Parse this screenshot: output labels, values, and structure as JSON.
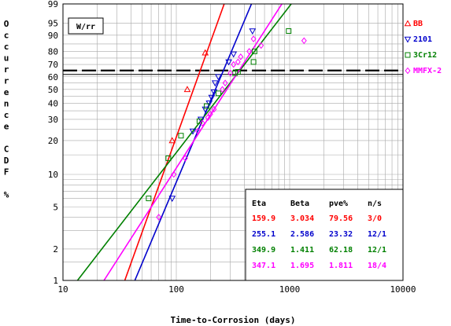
{
  "chart_data": {
    "type": "scatter",
    "xlabel": "Time-to-Corrosion (days)",
    "ylabel": "Occurrence CDF %",
    "x_scale": "log",
    "y_scale": "weibull",
    "xlim": [
      10,
      10000
    ],
    "ylim": [
      1,
      99
    ],
    "x_ticks": [
      {
        "value": 10,
        "label": "10"
      },
      {
        "value": 100,
        "label": "100"
      },
      {
        "value": 1000,
        "label": "1000"
      },
      {
        "value": 10000,
        "label": "10000"
      }
    ],
    "y_ticks": [
      {
        "value": 1,
        "label": "1"
      },
      {
        "value": 2,
        "label": "2"
      },
      {
        "value": 5,
        "label": "5"
      },
      {
        "value": 10,
        "label": "10"
      },
      {
        "value": 20,
        "label": "20"
      },
      {
        "value": 30,
        "label": "30"
      },
      {
        "value": 40,
        "label": "40"
      },
      {
        "value": 50,
        "label": "50"
      },
      {
        "value": 60,
        "label": "60"
      },
      {
        "value": 70,
        "label": "70"
      },
      {
        "value": 80,
        "label": "80"
      },
      {
        "value": 90,
        "label": "90"
      },
      {
        "value": 95,
        "label": "95"
      },
      {
        "value": 99,
        "label": "99"
      }
    ],
    "grid": true,
    "method_label": "W/rr",
    "reference_line_y": 63.2,
    "legend_position": "right",
    "series": [
      {
        "name": "BB",
        "marker": "triangle",
        "color": "#ff0000",
        "eta": 159.9,
        "beta": 3.034,
        "points": [
          [
            92,
            20
          ],
          [
            125,
            50
          ],
          [
            180,
            79
          ]
        ]
      },
      {
        "name": "2101",
        "marker": "triangle-down",
        "color": "#0000cc",
        "eta": 255.1,
        "beta": 2.586,
        "points": [
          [
            92,
            6
          ],
          [
            140,
            24
          ],
          [
            165,
            30
          ],
          [
            180,
            36
          ],
          [
            195,
            40
          ],
          [
            205,
            44
          ],
          [
            215,
            48
          ],
          [
            220,
            55
          ],
          [
            235,
            60
          ],
          [
            290,
            72
          ],
          [
            320,
            78
          ],
          [
            470,
            92
          ]
        ]
      },
      {
        "name": "3Cr12",
        "marker": "square",
        "color": "#008000",
        "eta": 349.9,
        "beta": 1.411,
        "points": [
          [
            57,
            6
          ],
          [
            85,
            14
          ],
          [
            110,
            22
          ],
          [
            160,
            29
          ],
          [
            185,
            38
          ],
          [
            235,
            47
          ],
          [
            330,
            63
          ],
          [
            350,
            64
          ],
          [
            480,
            72
          ],
          [
            490,
            80
          ],
          [
            980,
            92
          ]
        ]
      },
      {
        "name": "MMFX-2",
        "marker": "diamond",
        "color": "#ff00ff",
        "eta": 347.1,
        "beta": 1.695,
        "points": [
          [
            70,
            4
          ],
          [
            95,
            10
          ],
          [
            120,
            14
          ],
          [
            155,
            24
          ],
          [
            170,
            28
          ],
          [
            190,
            31
          ],
          [
            200,
            33
          ],
          [
            215,
            36
          ],
          [
            255,
            50
          ],
          [
            270,
            55
          ],
          [
            300,
            63
          ],
          [
            320,
            70
          ],
          [
            350,
            72
          ],
          [
            370,
            76
          ],
          [
            440,
            80
          ],
          [
            560,
            84
          ],
          [
            1340,
            87
          ],
          [
            480,
            88
          ]
        ]
      }
    ],
    "table": {
      "headers": [
        "Eta",
        "Beta",
        "pve%",
        "n/s"
      ],
      "rows": [
        {
          "values": [
            "159.9",
            "3.034",
            "79.56",
            "3/0"
          ],
          "color": "#ff0000"
        },
        {
          "values": [
            "255.1",
            "2.586",
            "23.32",
            "12/1"
          ],
          "color": "#0000cc"
        },
        {
          "values": [
            "349.9",
            "1.411",
            "62.18",
            "12/1"
          ],
          "color": "#008000"
        },
        {
          "values": [
            "347.1",
            "1.695",
            "1.811",
            "18/4"
          ],
          "color": "#ff00ff"
        }
      ]
    }
  }
}
